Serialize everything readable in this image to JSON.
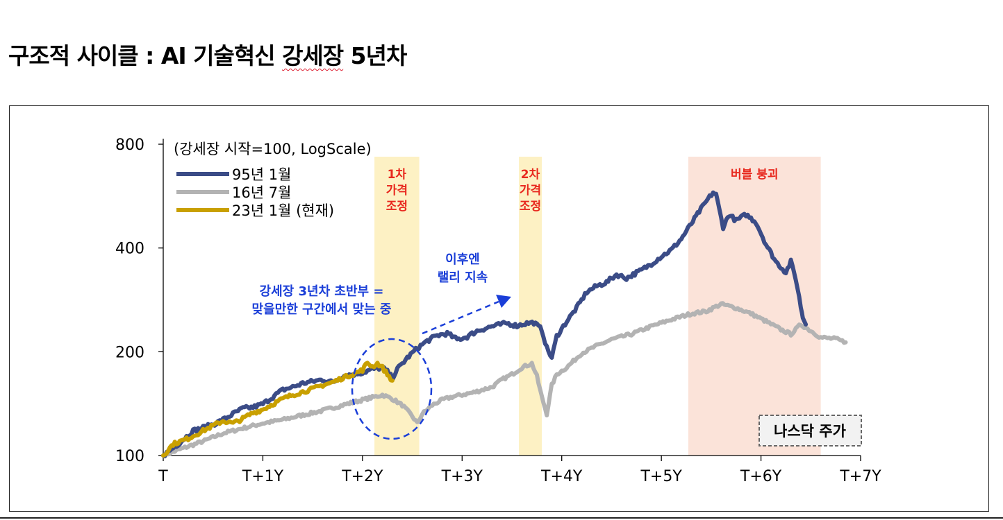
{
  "page": {
    "title_prefix": "구조적 사이클 : AI 기술혁신 ",
    "title_squiggle": "강세장",
    "title_suffix": " 5년차"
  },
  "chart_data": {
    "type": "line",
    "scale": "log",
    "subtitle": "(강세장 시작=100, LogScale)",
    "ylim": [
      100,
      800
    ],
    "yticks": [
      100,
      200,
      400,
      800
    ],
    "ytick_labels": [
      "100",
      "200",
      "400",
      "800"
    ],
    "xlim": [
      0,
      7
    ],
    "xticks": [
      0,
      1,
      2,
      3,
      4,
      5,
      6,
      7
    ],
    "xtick_labels": [
      "T",
      "T+1Y",
      "T+2Y",
      "T+3Y",
      "T+4Y",
      "T+5Y",
      "T+6Y",
      "T+7Y"
    ],
    "legend_position": "top-left",
    "series": [
      {
        "name": "95년 1월",
        "color": "#3b4c87",
        "points": [
          [
            0,
            100
          ],
          [
            0.15,
            108
          ],
          [
            0.3,
            118
          ],
          [
            0.5,
            123
          ],
          [
            0.6,
            127
          ],
          [
            0.7,
            132
          ],
          [
            0.8,
            137
          ],
          [
            0.9,
            138
          ],
          [
            1.0,
            141
          ],
          [
            1.1,
            148
          ],
          [
            1.2,
            155
          ],
          [
            1.3,
            158
          ],
          [
            1.4,
            162
          ],
          [
            1.5,
            164
          ],
          [
            1.6,
            166
          ],
          [
            1.7,
            163
          ],
          [
            1.8,
            170
          ],
          [
            1.9,
            172
          ],
          [
            2.0,
            174
          ],
          [
            2.1,
            178
          ],
          [
            2.2,
            180
          ],
          [
            2.25,
            175
          ],
          [
            2.3,
            168
          ],
          [
            2.35,
            178
          ],
          [
            2.45,
            192
          ],
          [
            2.55,
            205
          ],
          [
            2.65,
            215
          ],
          [
            2.75,
            223
          ],
          [
            2.85,
            226
          ],
          [
            2.95,
            217
          ],
          [
            3.05,
            221
          ],
          [
            3.15,
            230
          ],
          [
            3.3,
            237
          ],
          [
            3.45,
            242
          ],
          [
            3.55,
            238
          ],
          [
            3.65,
            242
          ],
          [
            3.72,
            243
          ],
          [
            3.8,
            232
          ],
          [
            3.85,
            205
          ],
          [
            3.9,
            192
          ],
          [
            3.95,
            222
          ],
          [
            4.05,
            245
          ],
          [
            4.15,
            268
          ],
          [
            4.25,
            298
          ],
          [
            4.35,
            310
          ],
          [
            4.45,
            318
          ],
          [
            4.55,
            335
          ],
          [
            4.65,
            327
          ],
          [
            4.8,
            345
          ],
          [
            4.9,
            360
          ],
          [
            5.0,
            378
          ],
          [
            5.1,
            395
          ],
          [
            5.2,
            425
          ],
          [
            5.3,
            470
          ],
          [
            5.38,
            510
          ],
          [
            5.45,
            545
          ],
          [
            5.52,
            580
          ],
          [
            5.55,
            570
          ],
          [
            5.58,
            520
          ],
          [
            5.62,
            460
          ],
          [
            5.68,
            500
          ],
          [
            5.75,
            480
          ],
          [
            5.85,
            500
          ],
          [
            5.95,
            475
          ],
          [
            6.05,
            410
          ],
          [
            6.15,
            365
          ],
          [
            6.25,
            340
          ],
          [
            6.3,
            365
          ],
          [
            6.35,
            325
          ],
          [
            6.4,
            270
          ],
          [
            6.42,
            252
          ],
          [
            6.45,
            240
          ]
        ]
      },
      {
        "name": "16년 7월",
        "color": "#b3b3b3",
        "points": [
          [
            0,
            100
          ],
          [
            0.2,
            105
          ],
          [
            0.4,
            110
          ],
          [
            0.6,
            116
          ],
          [
            0.8,
            120
          ],
          [
            1.0,
            124
          ],
          [
            1.2,
            127
          ],
          [
            1.4,
            131
          ],
          [
            1.6,
            135
          ],
          [
            1.8,
            140
          ],
          [
            2.0,
            145
          ],
          [
            2.2,
            150
          ],
          [
            2.3,
            146
          ],
          [
            2.4,
            140
          ],
          [
            2.5,
            130
          ],
          [
            2.55,
            124
          ],
          [
            2.6,
            132
          ],
          [
            2.7,
            140
          ],
          [
            2.8,
            145
          ],
          [
            2.9,
            148
          ],
          [
            3.0,
            150
          ],
          [
            3.1,
            152
          ],
          [
            3.2,
            155
          ],
          [
            3.3,
            158
          ],
          [
            3.4,
            166
          ],
          [
            3.5,
            172
          ],
          [
            3.6,
            180
          ],
          [
            3.7,
            185
          ],
          [
            3.75,
            170
          ],
          [
            3.8,
            148
          ],
          [
            3.85,
            132
          ],
          [
            3.9,
            160
          ],
          [
            3.95,
            172
          ],
          [
            4.05,
            180
          ],
          [
            4.2,
            198
          ],
          [
            4.35,
            208
          ],
          [
            4.5,
            217
          ],
          [
            4.7,
            225
          ],
          [
            4.9,
            237
          ],
          [
            5.1,
            248
          ],
          [
            5.3,
            258
          ],
          [
            5.45,
            262
          ],
          [
            5.6,
            275
          ],
          [
            5.75,
            268
          ],
          [
            5.9,
            258
          ],
          [
            6.05,
            245
          ],
          [
            6.2,
            232
          ],
          [
            6.3,
            225
          ],
          [
            6.4,
            240
          ],
          [
            6.5,
            230
          ],
          [
            6.6,
            220
          ],
          [
            6.75,
            218
          ],
          [
            6.85,
            213
          ]
        ]
      },
      {
        "name": "23년 1월 (현재)",
        "color": "#c9a000",
        "points": [
          [
            0,
            100
          ],
          [
            0.1,
            108
          ],
          [
            0.25,
            112
          ],
          [
            0.4,
            118
          ],
          [
            0.5,
            122
          ],
          [
            0.6,
            126
          ],
          [
            0.7,
            124
          ],
          [
            0.8,
            128
          ],
          [
            0.9,
            133
          ],
          [
            1.0,
            136
          ],
          [
            1.1,
            141
          ],
          [
            1.2,
            146
          ],
          [
            1.3,
            150
          ],
          [
            1.4,
            153
          ],
          [
            1.5,
            156
          ],
          [
            1.6,
            160
          ],
          [
            1.7,
            163
          ],
          [
            1.8,
            168
          ],
          [
            1.9,
            172
          ],
          [
            2.0,
            177
          ],
          [
            2.05,
            186
          ],
          [
            2.1,
            181
          ],
          [
            2.15,
            185
          ],
          [
            2.2,
            180
          ],
          [
            2.25,
            172
          ],
          [
            2.3,
            165
          ]
        ]
      }
    ],
    "shaded_regions": [
      {
        "x0": 2.12,
        "x1": 2.57,
        "label": "1차\n가격\n조정",
        "color": "#fdf1c4"
      },
      {
        "x0": 3.57,
        "x1": 3.8,
        "label": "2차\n가격\n조정",
        "color": "#fdf1c4"
      },
      {
        "x0": 5.27,
        "x1": 6.6,
        "label": "버블 붕괴",
        "color": "#fbe3d9"
      }
    ],
    "annotations": [
      {
        "text": "강세장 3년차 초반부 =\n맞을만한 구간에서 맞는 중",
        "color": "#1a3ed8"
      },
      {
        "text": "이후엔\n랠리 지속",
        "color": "#1a3ed8"
      }
    ],
    "source_label": "나스닥 주가"
  },
  "colors": {
    "region_label": "#e8281e",
    "annotation": "#1a3ed8"
  }
}
